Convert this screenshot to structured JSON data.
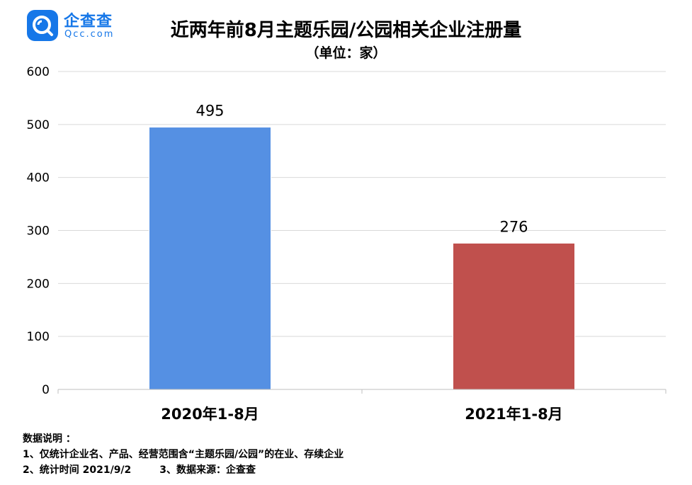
{
  "logo": {
    "name_cn": "企查查",
    "name_en": "Qcc.com",
    "brand_color": "#1677e8"
  },
  "chart_data": {
    "type": "bar",
    "title": "近两年前8月主题乐园/公园相关企业注册量",
    "subtitle": "（单位：家）",
    "categories": [
      "2020年1-8月",
      "2021年1-8月"
    ],
    "values": [
      495,
      276
    ],
    "data_labels": [
      "495",
      "276"
    ],
    "bar_colors": [
      "#5590e3",
      "#c0504d"
    ],
    "ylim": [
      0,
      600
    ],
    "y_ticks": [
      "0",
      "100",
      "200",
      "300",
      "400",
      "500",
      "600"
    ],
    "y_tick_values": [
      0,
      100,
      200,
      300,
      400,
      500,
      600
    ],
    "grid": true,
    "legend": "none",
    "xlabel": "",
    "ylabel": ""
  },
  "notes": {
    "heading": "数据说明 ：",
    "item1": "1、仅统计企业名、产品、经营范围含“主题乐园/公园”的在业、存续企业",
    "item2": "2、统计时间 2021/9/2",
    "item3": "3、数据来源：企查查"
  }
}
